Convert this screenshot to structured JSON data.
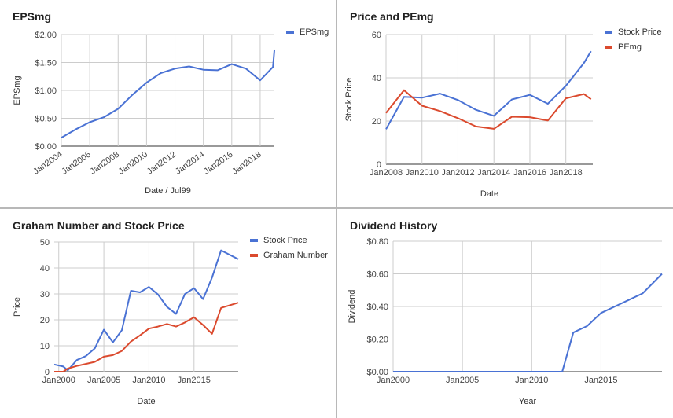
{
  "chart_data": [
    {
      "id": "eps",
      "type": "line",
      "title": "EPSmg",
      "xlabel": "Date / Jul99",
      "ylabel": "EPSmg",
      "x_type": "year",
      "x_tick_labels": [
        "Jan2004",
        "Jan2006",
        "Jan2008",
        "Jan2010",
        "Jan2012",
        "Jan2014",
        "Jan2016",
        "Jan2018"
      ],
      "x_tick_values": [
        2004,
        2006,
        2008,
        2010,
        2012,
        2014,
        2016,
        2018
      ],
      "xlim": [
        2004,
        2019
      ],
      "y_tick_labels": [
        "$0.00",
        "$0.50",
        "$1.00",
        "$1.50",
        "$2.00"
      ],
      "y_tick_values": [
        0,
        0.5,
        1.0,
        1.5,
        2.0
      ],
      "ylim": [
        0,
        2.0
      ],
      "grid": true,
      "legend_position": "right",
      "series": [
        {
          "name": "EPSmg",
          "color": "#4a72d4",
          "x": [
            2004,
            2005,
            2006,
            2007,
            2008,
            2009,
            2010,
            2011,
            2012,
            2013,
            2014,
            2015,
            2016,
            2017,
            2018,
            2018.9,
            2019
          ],
          "y": [
            0.15,
            0.3,
            0.43,
            0.52,
            0.67,
            0.92,
            1.14,
            1.31,
            1.39,
            1.43,
            1.37,
            1.36,
            1.47,
            1.39,
            1.18,
            1.42,
            1.72
          ]
        }
      ]
    },
    {
      "id": "price_pe",
      "type": "line",
      "title": "Price and PEmg",
      "xlabel": "Date",
      "ylabel": "Stock Price",
      "x_type": "year",
      "x_tick_labels": [
        "Jan2008",
        "Jan2010",
        "Jan2012",
        "Jan2014",
        "Jan2016",
        "Jan2018"
      ],
      "x_tick_values": [
        2008,
        2010,
        2012,
        2014,
        2016,
        2018
      ],
      "xlim": [
        2008,
        2019.5
      ],
      "y_tick_labels": [
        "0",
        "20",
        "40",
        "60"
      ],
      "y_tick_values": [
        0,
        20,
        40,
        60
      ],
      "ylim": [
        0,
        60
      ],
      "grid": true,
      "legend_position": "right",
      "series": [
        {
          "name": "Stock Price",
          "color": "#4a72d4",
          "x": [
            2008,
            2009,
            2010,
            2011,
            2012,
            2013,
            2014,
            2015,
            2016,
            2017,
            2018,
            2019,
            2019.4
          ],
          "y": [
            16.2,
            31.2,
            30.8,
            32.7,
            29.7,
            25.2,
            22.4,
            30.0,
            32.1,
            28.0,
            36.3,
            46.8,
            52.3
          ]
        },
        {
          "name": "PEmg",
          "color": "#db4a2e",
          "x": [
            2008,
            2009,
            2010,
            2011,
            2012,
            2013,
            2014,
            2015,
            2016,
            2017,
            2018,
            2019,
            2019.4
          ],
          "y": [
            23.7,
            34.3,
            27.1,
            24.6,
            21.3,
            17.5,
            16.4,
            22.0,
            21.8,
            20.2,
            30.5,
            32.5,
            30.1
          ]
        }
      ]
    },
    {
      "id": "graham",
      "type": "line",
      "title": "Graham Number and Stock Price",
      "xlabel": "Date",
      "ylabel": "Price",
      "x_type": "year",
      "x_tick_labels": [
        "Jan2000",
        "Jan2005",
        "Jan2010",
        "Jan2015"
      ],
      "x_tick_values": [
        2000,
        2005,
        2010,
        2015
      ],
      "xlim": [
        1999.5,
        2019.9
      ],
      "y_tick_labels": [
        "0",
        "10",
        "20",
        "30",
        "40",
        "50"
      ],
      "y_tick_values": [
        0,
        10,
        20,
        30,
        40,
        50
      ],
      "ylim": [
        0,
        50
      ],
      "grid": true,
      "legend_position": "right",
      "series": [
        {
          "name": "Stock Price",
          "color": "#4a72d4",
          "x": [
            1999.5,
            2000.5,
            2001,
            2002,
            2003,
            2004,
            2005,
            2006,
            2007,
            2008,
            2009,
            2010,
            2011,
            2012,
            2013,
            2014,
            2015,
            2016,
            2017,
            2018,
            2019,
            2019.9
          ],
          "y": [
            2.8,
            2.0,
            0.5,
            4.5,
            6.0,
            9.0,
            16.2,
            11.3,
            16.0,
            31.2,
            30.6,
            32.7,
            29.8,
            25.0,
            22.3,
            30.0,
            32.2,
            28.0,
            36.3,
            46.8,
            45.0,
            43.4
          ]
        },
        {
          "name": "Graham Number",
          "color": "#db4a2e",
          "x": [
            1999.5,
            2000.5,
            2001,
            2002,
            2003,
            2004,
            2005,
            2006,
            2007,
            2008,
            2009,
            2010,
            2011,
            2012,
            2013,
            2014,
            2015,
            2016,
            2017,
            2018,
            2019.9
          ],
          "y": [
            0.0,
            0.0,
            1.2,
            2.2,
            3.0,
            3.8,
            5.8,
            6.4,
            8.0,
            11.6,
            14.0,
            16.6,
            17.4,
            18.4,
            17.4,
            19.0,
            21.0,
            18.0,
            14.6,
            24.6,
            26.6
          ]
        }
      ]
    },
    {
      "id": "dividend",
      "type": "line",
      "title": "Dividend History",
      "xlabel": "Year",
      "ylabel": "Dividend",
      "x_type": "year",
      "x_tick_labels": [
        "Jan2000",
        "Jan2005",
        "Jan2010",
        "Jan2015"
      ],
      "x_tick_values": [
        2000,
        2005,
        2010,
        2015
      ],
      "xlim": [
        2000,
        2019.4
      ],
      "y_tick_labels": [
        "$0.00",
        "$0.20",
        "$0.40",
        "$0.60",
        "$0.80"
      ],
      "y_tick_values": [
        0,
        0.2,
        0.4,
        0.6,
        0.8
      ],
      "ylim": [
        0,
        0.8
      ],
      "grid": true,
      "legend_position": "none",
      "series": [
        {
          "color": "#4a72d4",
          "x": [
            2000,
            2012.2,
            2013,
            2014,
            2015,
            2016,
            2017,
            2018,
            2019.4
          ],
          "y": [
            0.0,
            0.0,
            0.24,
            0.28,
            0.36,
            0.4,
            0.44,
            0.48,
            0.6
          ]
        }
      ]
    }
  ]
}
